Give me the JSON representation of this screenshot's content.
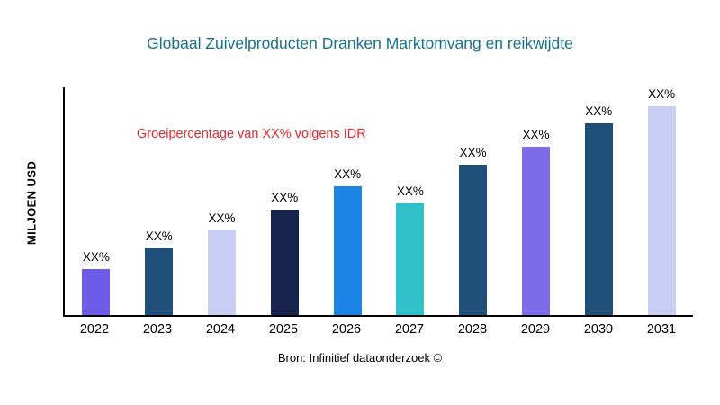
{
  "title": "Globaal Zuivelproducten Dranken Marktomvang en reikwijdte",
  "annotation": "Groeipercentage van XX% volgens IDR",
  "source": "Bron: Infinitief dataonderzoek ©",
  "colors": {
    "title": "#17718F",
    "annotation": "#E8262D",
    "axis": "#000000"
  },
  "chart_data": {
    "type": "bar",
    "title": "Globaal Zuivelproducten Dranken Marktomvang en reikwijdte",
    "xlabel": "",
    "ylabel": "MILJOEN USD",
    "categories": [
      "2022",
      "2023",
      "2024",
      "2025",
      "2026",
      "2027",
      "2028",
      "2029",
      "2030",
      "2031"
    ],
    "values": [
      50,
      73,
      93,
      116,
      141,
      123,
      165,
      185,
      210,
      233
    ],
    "bar_labels": [
      "XX%",
      "XX%",
      "XX%",
      "XX%",
      "XX%",
      "XX%",
      "XX%",
      "XX%",
      "XX%",
      "XX%"
    ],
    "bar_colors": [
      "#6C5CE7",
      "#1F4E79",
      "#C9CEF4",
      "#17254E",
      "#1B84E4",
      "#30C0C9",
      "#1F4E79",
      "#7D6BEA",
      "#1F4E79",
      "#C9CEF4"
    ],
    "ylim": [
      0,
      250
    ],
    "grid": false,
    "legend": "none",
    "annotation": "Groeipercentage van XX% volgens IDR"
  }
}
